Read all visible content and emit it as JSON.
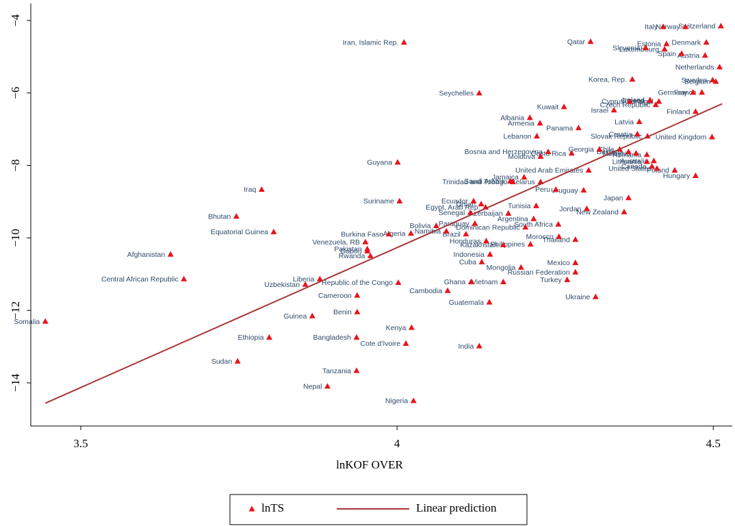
{
  "chart_data": {
    "type": "scatter",
    "xlabel": "lnKOF OVER",
    "xlim": [
      3.421,
      4.53
    ],
    "xticks": [
      3.5,
      4,
      4.5
    ],
    "ylim": [
      -15.19,
      -3.53
    ],
    "yticks": [
      {
        "value": -4,
        "label": "−4"
      },
      {
        "value": -6,
        "label": "−6"
      },
      {
        "value": -8,
        "label": "−8"
      },
      {
        "value": -10,
        "label": "−10"
      },
      {
        "value": -12,
        "label": "−12"
      },
      {
        "value": -14,
        "label": "−14"
      }
    ],
    "series": [
      {
        "name": "lnTS",
        "color": "#e8141c",
        "labels": [
          "Somalia",
          "Afghanistan",
          "Central African Republic",
          "Bhutan",
          "Iraq",
          "Equatorial Guinea",
          "Sudan",
          "Ethiopia",
          "Uzbekistan",
          "Liberia",
          "Guinea",
          "Nepal",
          "Republic of the Congo",
          "Cambodia",
          "Cameroon",
          "Benin",
          "Bangladesh",
          "Tanzania",
          "Kenya",
          "Cote d'Ivoire",
          "Nigeria",
          "India",
          "Guatemala",
          "Ghana",
          "Vietnam",
          "Cuba",
          "Mongolia",
          "Mexico",
          "Russian Federation",
          "Turkey",
          "Ukraine",
          "Indonesia",
          "Honduras",
          "Kazakhstan",
          "Philippines",
          "Thailand",
          "Morocco",
          "South Africa",
          "Brazil",
          "Dominican Republic",
          "Paraguay",
          "Argentina",
          "Namibia",
          "Algeria",
          "Bolivia",
          "Burkina Faso",
          "Venezuela, RB",
          "Pakistan",
          "Gabon",
          "Rwanda",
          "Senegal",
          "Azerbaijan",
          "Egypt, Arab Rep.",
          "Tunisia",
          "Oman",
          "Ecuador",
          "Jordan",
          "New Zealand",
          "Japan",
          "Peru",
          "Uruguay",
          "Trinidad and Tobago",
          "Saudi Arabia",
          "Jamaica",
          "Belarus",
          "United Arab Emirates",
          "Bosnia and Herzegovina",
          "Moldova",
          "Costa Rica",
          "Georgia",
          "Lebanon",
          "Armenia",
          "Albania",
          "Kuwait",
          "Panama",
          "Seychelles",
          "Iran, Islamic Rep.",
          "Guyana",
          "Suriname",
          "Qatar",
          "Korea, Rep.",
          "Israel",
          "Cyprus",
          "Czech Republic",
          "Latvia",
          "Slovak Republic",
          "Croatia",
          "United Kingdom",
          "Finland",
          "Ireland",
          "Italy",
          "Norway",
          "Switzerland",
          "Denmark",
          "Estonia",
          "Slovenia",
          "Luxembourg",
          "Spain",
          "Austria",
          "Netherlands",
          "Sweden",
          "Belgium",
          "Germany",
          "France",
          "Portugal",
          "Greece",
          "Canada",
          "United States",
          "Poland",
          "Hungary",
          "Lithuania",
          "Australia",
          "Romania",
          "Malaysia",
          "Chile",
          "Bulgaria"
        ],
        "x": [
          3.444,
          3.642,
          3.663,
          3.746,
          3.786,
          3.805,
          3.748,
          3.798,
          3.855,
          3.878,
          3.866,
          3.89,
          4.002,
          4.08,
          3.937,
          3.937,
          3.936,
          3.936,
          4.023,
          4.014,
          4.026,
          4.13,
          4.146,
          4.117,
          4.168,
          4.134,
          4.196,
          4.282,
          4.282,
          4.269,
          4.314,
          4.147,
          4.141,
          4.168,
          4.211,
          4.282,
          4.256,
          4.255,
          4.109,
          4.203,
          4.123,
          4.216,
          4.078,
          4.022,
          4.062,
          3.987,
          3.95,
          3.953,
          3.953,
          3.958,
          4.116,
          4.176,
          4.14,
          4.22,
          4.133,
          4.121,
          4.3,
          4.359,
          4.366,
          4.251,
          4.295,
          4.183,
          4.179,
          4.201,
          4.227,
          4.303,
          4.239,
          4.227,
          4.276,
          4.32,
          4.221,
          4.226,
          4.21,
          4.264,
          4.287,
          4.13,
          4.011,
          4.001,
          4.004,
          4.306,
          4.372,
          4.343,
          4.368,
          4.409,
          4.383,
          4.396,
          4.38,
          4.498,
          4.472,
          4.4,
          4.421,
          4.456,
          4.512,
          4.489,
          4.426,
          4.393,
          4.423,
          4.45,
          4.487,
          4.51,
          4.499,
          4.504,
          4.468,
          4.482,
          4.414,
          4.4,
          4.403,
          4.411,
          4.439,
          4.472,
          4.395,
          4.406,
          4.395,
          4.378,
          4.352,
          4.366
        ],
        "values": [
          -12.3,
          -10.45,
          -11.13,
          -9.4,
          -8.66,
          -9.83,
          -13.4,
          -12.74,
          -11.28,
          -11.13,
          -12.15,
          -14.09,
          -11.23,
          -11.45,
          -11.58,
          -12.04,
          -12.74,
          -13.66,
          -12.47,
          -12.91,
          -14.49,
          -12.98,
          -11.77,
          -11.21,
          -11.21,
          -10.66,
          -10.81,
          -10.68,
          -10.94,
          -11.15,
          -11.62,
          -10.45,
          -10.08,
          -10.19,
          -10.17,
          -10.04,
          -9.96,
          -9.62,
          -9.89,
          -9.7,
          -9.6,
          -9.47,
          -9.81,
          -9.87,
          -9.66,
          -9.89,
          -10.11,
          -10.3,
          -10.36,
          -10.49,
          -9.3,
          -9.32,
          -9.15,
          -9.11,
          -9.06,
          -8.98,
          -9.19,
          -9.28,
          -8.89,
          -8.66,
          -8.68,
          -8.45,
          -8.43,
          -8.32,
          -8.45,
          -8.13,
          -7.62,
          -7.75,
          -7.66,
          -7.55,
          -7.19,
          -6.83,
          -6.68,
          -6.38,
          -6.96,
          -6.0,
          -4.6,
          -7.91,
          -8.98,
          -4.58,
          -5.62,
          -6.47,
          -6.23,
          -6.32,
          -6.79,
          -7.19,
          -7.13,
          -7.21,
          -6.51,
          -6.19,
          -4.17,
          -4.17,
          -4.15,
          -4.6,
          -4.64,
          -4.75,
          -4.79,
          -4.91,
          -4.96,
          -5.28,
          -5.64,
          -5.68,
          -5.98,
          -5.98,
          -6.23,
          -6.21,
          -8.02,
          -8.08,
          -8.13,
          -8.28,
          -7.89,
          -7.87,
          -7.7,
          -7.66,
          -7.55,
          -7.62
        ]
      },
      {
        "name": "Linear prediction",
        "color": "#a83436",
        "x": [
          3.444,
          4.514
        ],
        "values": [
          -14.56,
          -6.3
        ]
      }
    ]
  }
}
